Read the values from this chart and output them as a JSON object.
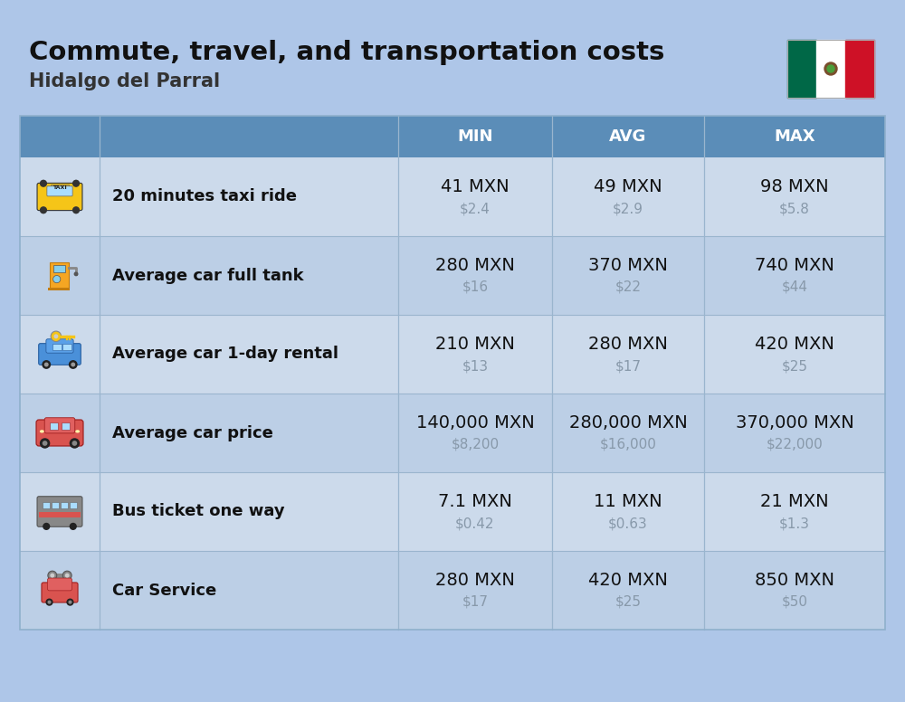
{
  "title": "Commute, travel, and transportation costs",
  "subtitle": "Hidalgo del Parral",
  "background_color": "#aec6e8",
  "header_color": "#5b8db8",
  "header_text_color": "#ffffff",
  "row_color_light": "#ccdaeb",
  "row_color_dark": "#bccfe6",
  "divider_color": "#9ab5ce",
  "col_headers": [
    "MIN",
    "AVG",
    "MAX"
  ],
  "rows": [
    {
      "label": "20 minutes taxi ride",
      "min_mxn": "41 MXN",
      "min_usd": "$2.4",
      "avg_mxn": "49 MXN",
      "avg_usd": "$2.9",
      "max_mxn": "98 MXN",
      "max_usd": "$5.8"
    },
    {
      "label": "Average car full tank",
      "min_mxn": "280 MXN",
      "min_usd": "$16",
      "avg_mxn": "370 MXN",
      "avg_usd": "$22",
      "max_mxn": "740 MXN",
      "max_usd": "$44"
    },
    {
      "label": "Average car 1-day rental",
      "min_mxn": "210 MXN",
      "min_usd": "$13",
      "avg_mxn": "280 MXN",
      "avg_usd": "$17",
      "max_mxn": "420 MXN",
      "max_usd": "$25"
    },
    {
      "label": "Average car price",
      "min_mxn": "140,000 MXN",
      "min_usd": "$8,200",
      "avg_mxn": "280,000 MXN",
      "avg_usd": "$16,000",
      "max_mxn": "370,000 MXN",
      "max_usd": "$22,000"
    },
    {
      "label": "Bus ticket one way",
      "min_mxn": "7.1 MXN",
      "min_usd": "$0.42",
      "avg_mxn": "11 MXN",
      "avg_usd": "$0.63",
      "max_mxn": "21 MXN",
      "max_usd": "$1.3"
    },
    {
      "label": "Car Service",
      "min_mxn": "280 MXN",
      "min_usd": "$17",
      "avg_mxn": "420 MXN",
      "avg_usd": "$25",
      "max_mxn": "850 MXN",
      "max_usd": "$50"
    }
  ],
  "title_fontsize": 21,
  "subtitle_fontsize": 15,
  "header_fontsize": 13,
  "cell_mxn_fontsize": 14,
  "cell_usd_fontsize": 11,
  "label_fontsize": 13,
  "usd_color": "#8899aa"
}
